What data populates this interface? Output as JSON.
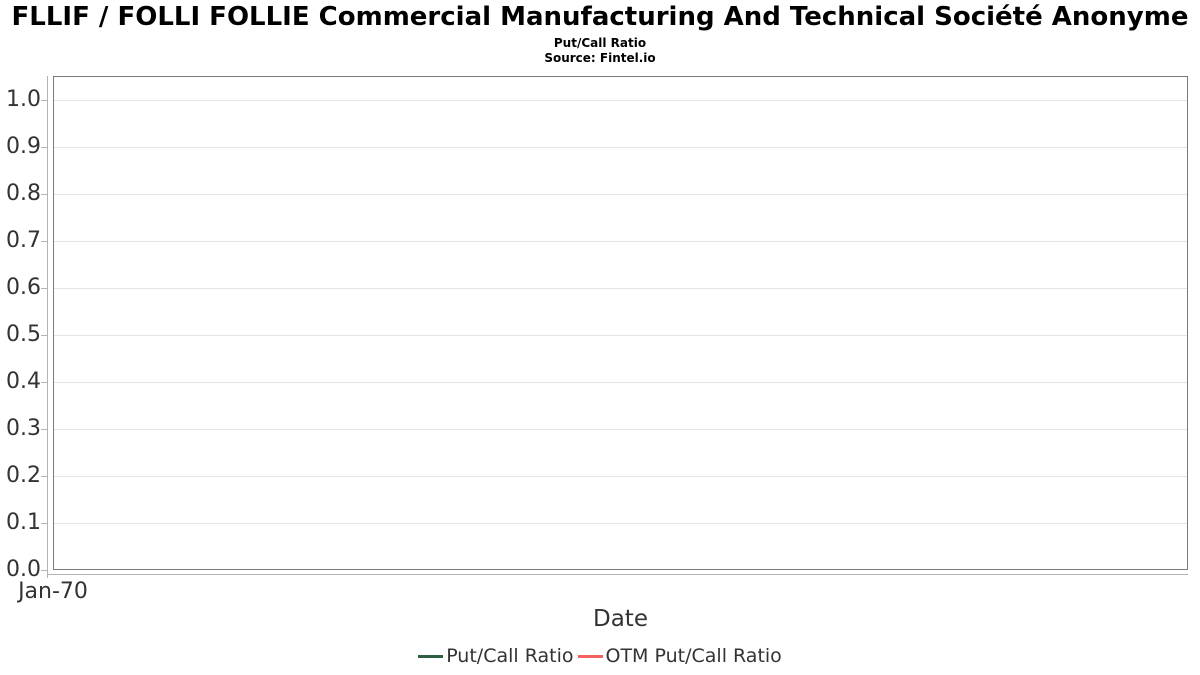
{
  "header": {
    "title": "FLLIF / FOLLI FOLLIE Commercial Manufacturing And Technical Société Anonyme",
    "subtitle": "Put/Call Ratio",
    "source": "Source: Fintel.io"
  },
  "axes": {
    "x_label": "Date",
    "x_tick_labels": [
      "Jan-70"
    ],
    "y_tick_labels": [
      "0.0",
      "0.1",
      "0.2",
      "0.3",
      "0.4",
      "0.5",
      "0.6",
      "0.7",
      "0.8",
      "0.9",
      "1.0"
    ]
  },
  "legend": {
    "items": [
      {
        "label": "Put/Call Ratio",
        "color": "#2e5f43"
      },
      {
        "label": "OTM Put/Call Ratio",
        "color": "#f3625e"
      }
    ]
  },
  "colors": {
    "plot_border": "#7a7a7a",
    "gridline": "#e4e4e4",
    "axis_line": "#b3b3b3",
    "title_text": "#000000",
    "axis_text": "#333333"
  },
  "chart_data": {
    "type": "line",
    "title": "FLLIF / FOLLI FOLLIE Commercial Manufacturing And Technical Société Anonyme",
    "subtitle": "Put/Call Ratio",
    "source": "Source: Fintel.io",
    "xlabel": "Date",
    "ylabel": "",
    "x_ticks": [
      "Jan-70"
    ],
    "y_ticks": [
      0.0,
      0.1,
      0.2,
      0.3,
      0.4,
      0.5,
      0.6,
      0.7,
      0.8,
      0.9,
      1.0
    ],
    "ylim": [
      0,
      1.05
    ],
    "grid": true,
    "legend_position": "bottom-center",
    "empty": true,
    "series": [
      {
        "name": "Put/Call Ratio",
        "color": "#2e5f43",
        "x": [],
        "y": []
      },
      {
        "name": "OTM Put/Call Ratio",
        "color": "#f3625e",
        "x": [],
        "y": []
      }
    ]
  }
}
